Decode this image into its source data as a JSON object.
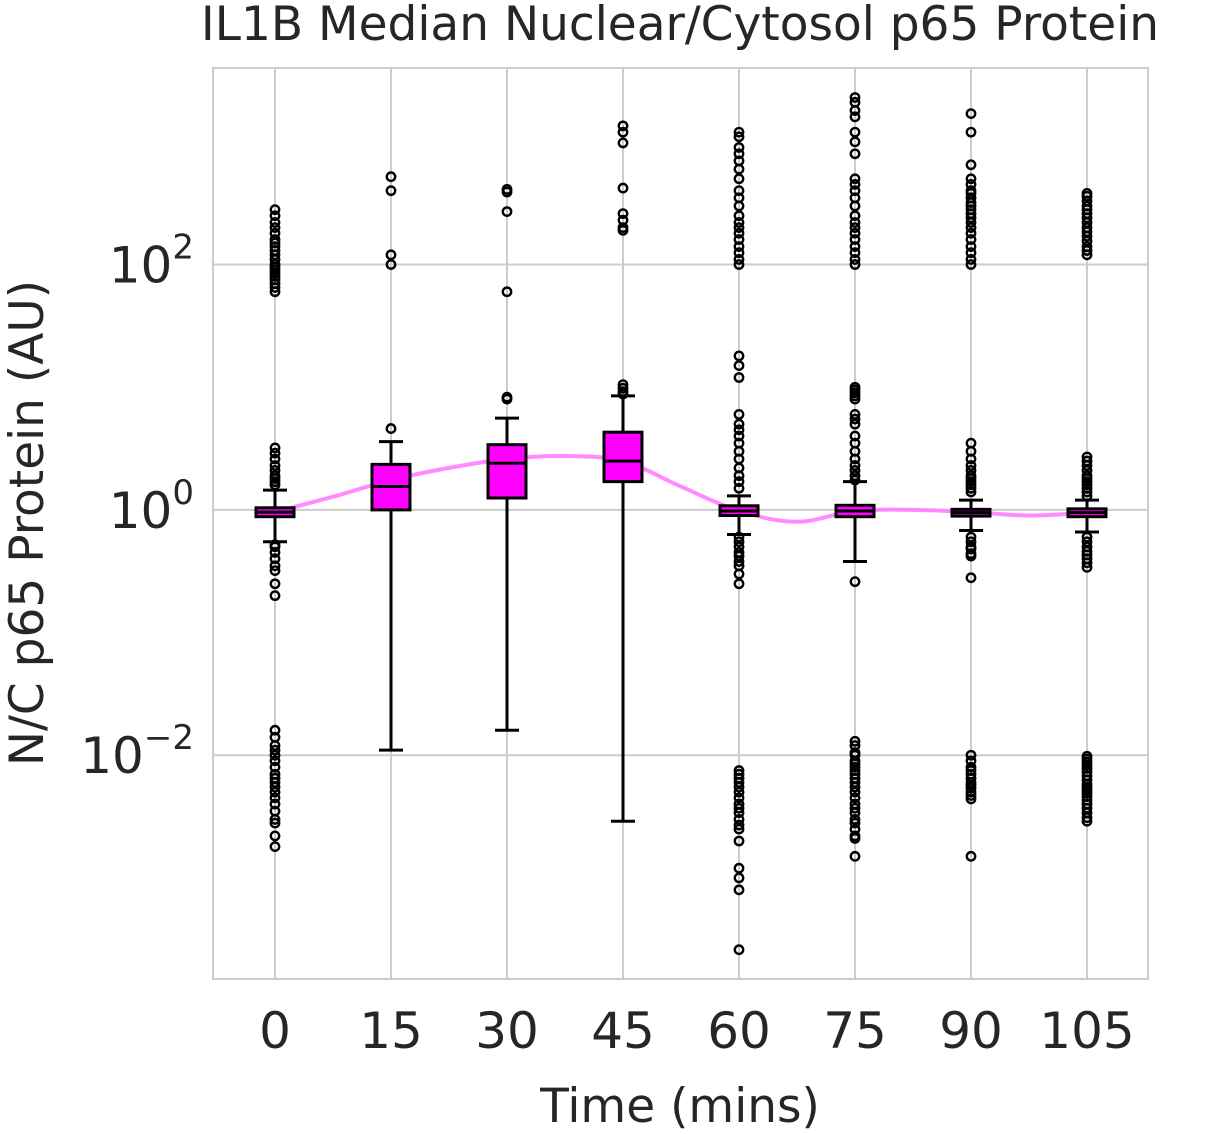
{
  "chart_data": {
    "type": "box",
    "title": "IL1B Median Nuclear/Cytosol p65 Protein",
    "xlabel": "Time (mins)",
    "ylabel": "N/C p65 Protein (AU)",
    "yscale": "log",
    "ylim": [
      0.00015,
      4000
    ],
    "categories": [
      "0",
      "15",
      "30",
      "45",
      "60",
      "75",
      "90",
      "105"
    ],
    "y_ticks": [
      {
        "value": 100,
        "base": "10",
        "exp": "2"
      },
      {
        "value": 1,
        "base": "10",
        "exp": "0"
      },
      {
        "value": 0.01,
        "base": "10",
        "exp": "−2"
      }
    ],
    "grid": true,
    "box_color": "#ff00ff",
    "trend_color": "#ff80ff",
    "boxes": [
      {
        "x": 0,
        "whislo": 0.55,
        "q1": 0.88,
        "med": 0.96,
        "q3": 1.04,
        "whishi": 1.45
      },
      {
        "x": 15,
        "whislo": 0.011,
        "q1": 1.0,
        "med": 1.55,
        "q3": 2.35,
        "whishi": 3.6
      },
      {
        "x": 30,
        "whislo": 0.016,
        "q1": 1.25,
        "med": 2.4,
        "q3": 3.4,
        "whishi": 5.6
      },
      {
        "x": 45,
        "whislo": 0.0029,
        "q1": 1.7,
        "med": 2.5,
        "q3": 4.3,
        "whishi": 8.5
      },
      {
        "x": 60,
        "whislo": 0.63,
        "q1": 0.9,
        "med": 0.98,
        "q3": 1.08,
        "whishi": 1.3
      },
      {
        "x": 75,
        "whislo": 0.38,
        "q1": 0.88,
        "med": 0.98,
        "q3": 1.09,
        "whishi": 1.7
      },
      {
        "x": 90,
        "whislo": 0.68,
        "q1": 0.89,
        "med": 0.95,
        "q3": 1.01,
        "whishi": 1.2
      },
      {
        "x": 105,
        "whislo": 0.66,
        "q1": 0.88,
        "med": 0.95,
        "q3": 1.02,
        "whishi": 1.2
      }
    ],
    "fliers": [
      {
        "x": 0,
        "values": [
          280,
          250,
          220,
          200,
          180,
          160,
          150,
          140,
          130,
          120,
          110,
          100,
          95,
          90,
          85,
          80,
          75,
          70,
          65,
          60,
          3.2,
          2.9,
          2.6,
          2.3,
          2.1,
          1.9,
          1.8,
          1.7,
          1.6,
          0.52,
          0.5,
          0.45,
          0.4,
          0.35,
          0.32,
          0.25,
          0.2,
          0.016,
          0.014,
          0.012,
          0.011,
          0.01,
          0.009,
          0.008,
          0.007,
          0.0065,
          0.006,
          0.0055,
          0.005,
          0.0045,
          0.004,
          0.0035,
          0.003,
          0.0028,
          0.0022,
          0.0018
        ]
      },
      {
        "x": 15,
        "values": [
          520,
          400,
          120,
          100,
          4.6
        ]
      },
      {
        "x": 30,
        "values": [
          410,
          390,
          270,
          60,
          8.3,
          8.0
        ]
      },
      {
        "x": 45,
        "values": [
          1350,
          1200,
          980,
          420,
          260,
          230,
          200,
          190,
          10.5,
          9.8,
          9.2,
          8.8
        ]
      },
      {
        "x": 60,
        "values": [
          1200,
          1100,
          900,
          800,
          700,
          600,
          500,
          400,
          350,
          300,
          250,
          220,
          200,
          180,
          160,
          140,
          125,
          110,
          100,
          18,
          15,
          12,
          6,
          5,
          4.5,
          4,
          3.5,
          3,
          2.6,
          2.2,
          1.9,
          1.7,
          1.5,
          0.6,
          0.55,
          0.5,
          0.45,
          0.42,
          0.38,
          0.35,
          0.3,
          0.25,
          0.0075,
          0.007,
          0.0065,
          0.006,
          0.0055,
          0.005,
          0.0045,
          0.004,
          0.0037,
          0.0034,
          0.003,
          0.0027,
          0.0025,
          0.002,
          0.0012,
          0.001,
          0.0008,
          0.00026
        ]
      },
      {
        "x": 75,
        "values": [
          2300,
          2100,
          1800,
          1600,
          1200,
          1000,
          800,
          500,
          450,
          400,
          350,
          300,
          250,
          220,
          200,
          180,
          160,
          140,
          125,
          110,
          100,
          10,
          9.5,
          9,
          8.5,
          8,
          6,
          5.5,
          5,
          4,
          3.5,
          3,
          2.6,
          2.3,
          2.1,
          1.9,
          1.75,
          0.26,
          0.013,
          0.012,
          0.0105,
          0.01,
          0.009,
          0.0085,
          0.008,
          0.0075,
          0.007,
          0.0065,
          0.006,
          0.0055,
          0.005,
          0.0045,
          0.004,
          0.0037,
          0.0034,
          0.003,
          0.0028,
          0.0025,
          0.0022,
          0.0021,
          0.0015
        ]
      },
      {
        "x": 90,
        "values": [
          1700,
          1200,
          650,
          500,
          450,
          400,
          380,
          350,
          320,
          300,
          280,
          260,
          240,
          220,
          200,
          180,
          160,
          140,
          125,
          110,
          100,
          3.5,
          3.0,
          2.6,
          2.3,
          2.1,
          1.9,
          1.8,
          1.7,
          1.6,
          1.5,
          1.4,
          0.6,
          0.55,
          0.5,
          0.48,
          0.44,
          0.42,
          0.28,
          0.01,
          0.009,
          0.008,
          0.0075,
          0.007,
          0.0065,
          0.006,
          0.0057,
          0.0054,
          0.005,
          0.0047,
          0.0044,
          0.0015
        ]
      },
      {
        "x": 105,
        "values": [
          380,
          360,
          330,
          300,
          280,
          260,
          240,
          220,
          200,
          185,
          170,
          155,
          140,
          130,
          120,
          2.7,
          2.5,
          2.3,
          2.1,
          1.9,
          1.8,
          1.7,
          1.6,
          1.5,
          1.4,
          1.3,
          0.6,
          0.55,
          0.5,
          0.46,
          0.43,
          0.4,
          0.37,
          0.34,
          0.0098,
          0.0093,
          0.0088,
          0.0083,
          0.0078,
          0.0073,
          0.0068,
          0.0063,
          0.0058,
          0.0055,
          0.0052,
          0.0049,
          0.0046,
          0.0043,
          0.004,
          0.0037,
          0.0034,
          0.0031,
          0.0029
        ]
      }
    ],
    "trend_line": {
      "x": [
        0,
        7.5,
        15,
        22.5,
        30,
        37.5,
        45,
        52.5,
        60,
        67.5,
        75,
        82.5,
        90,
        97.5,
        105
      ],
      "y": [
        0.96,
        1.28,
        1.75,
        2.2,
        2.6,
        2.75,
        2.5,
        1.55,
        0.98,
        0.8,
        0.98,
        1.0,
        0.96,
        0.9,
        0.95
      ]
    }
  }
}
